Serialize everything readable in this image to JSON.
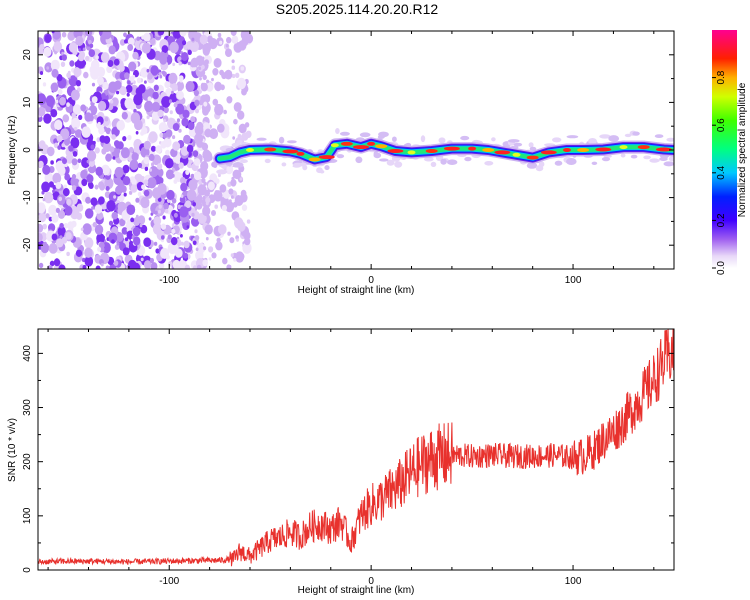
{
  "chart_data": [
    {
      "type": "heatmap",
      "title": "S205.2025.114.20.20.R12",
      "xlabel": "Height of straight line (km)",
      "ylabel": "Frequency (Hz)",
      "xlim": [
        -165,
        150
      ],
      "ylim": [
        -25,
        25
      ],
      "x_ticks": [
        -100,
        0,
        100
      ],
      "y_ticks": [
        -20,
        -10,
        0,
        10,
        20
      ],
      "x_tick_labels": [
        "-100",
        "0",
        "100"
      ],
      "y_tick_labels": [
        "-20",
        "-10",
        "0",
        "10",
        "20"
      ],
      "noise_region_x": [
        -165,
        -60
      ],
      "ridge": [
        {
          "x": -75,
          "y": -1.8
        },
        {
          "x": -70,
          "y": -1.5
        },
        {
          "x": -65,
          "y": -0.5
        },
        {
          "x": -60,
          "y": 0.0
        },
        {
          "x": -50,
          "y": 0.1
        },
        {
          "x": -40,
          "y": -0.3
        },
        {
          "x": -35,
          "y": -0.8
        },
        {
          "x": -28,
          "y": -2.0
        },
        {
          "x": -22,
          "y": -1.5
        },
        {
          "x": -18,
          "y": 1.0
        },
        {
          "x": -12,
          "y": 1.3
        },
        {
          "x": -5,
          "y": 0.6
        },
        {
          "x": 0,
          "y": 1.3
        },
        {
          "x": 5,
          "y": 0.8
        },
        {
          "x": 12,
          "y": -0.2
        },
        {
          "x": 20,
          "y": -0.5
        },
        {
          "x": 30,
          "y": -0.2
        },
        {
          "x": 40,
          "y": 0.3
        },
        {
          "x": 50,
          "y": 0.3
        },
        {
          "x": 58,
          "y": 0.0
        },
        {
          "x": 65,
          "y": -0.5
        },
        {
          "x": 72,
          "y": -1.0
        },
        {
          "x": 80,
          "y": -1.6
        },
        {
          "x": 88,
          "y": -0.5
        },
        {
          "x": 97,
          "y": 0.0
        },
        {
          "x": 105,
          "y": 0.0
        },
        {
          "x": 115,
          "y": 0.1
        },
        {
          "x": 125,
          "y": 0.6
        },
        {
          "x": 135,
          "y": 0.6
        },
        {
          "x": 145,
          "y": 0.1
        },
        {
          "x": 150,
          "y": 0.0
        }
      ],
      "colorbar": {
        "label": "Normalized spectral amplitude",
        "range": [
          0,
          1
        ],
        "ticks": [
          0.0,
          0.2,
          0.4,
          0.6,
          0.8
        ],
        "tick_labels": [
          "0.0",
          "0.2",
          "0.4",
          "0.6",
          "0.8"
        ],
        "colormap": "rainbow (white-violet-blue-cyan-green-yellow-red-magenta)"
      },
      "grid": false,
      "legend": "none"
    },
    {
      "type": "line",
      "title": "",
      "xlabel": "Height of straight line (km)",
      "ylabel": "SNR (10 * v/v)",
      "xlim": [
        -165,
        150
      ],
      "ylim": [
        0,
        445
      ],
      "x_ticks": [
        -100,
        0,
        100
      ],
      "y_ticks": [
        0,
        100,
        200,
        300,
        400
      ],
      "x_tick_labels": [
        "-100",
        "0",
        "100"
      ],
      "y_tick_labels": [
        "0",
        "100",
        "200",
        "300",
        "400"
      ],
      "line_color": "#e8312d",
      "series": [
        {
          "x": [
            -165,
            -150,
            -135,
            -120,
            -105,
            -90,
            -75,
            -68,
            -65,
            -60,
            -55,
            -50,
            -45,
            -40,
            -35,
            -30,
            -25,
            -20,
            -15,
            -10,
            -5,
            0,
            5,
            10,
            15,
            20,
            25,
            30,
            35,
            40,
            50,
            60,
            70,
            80,
            90,
            100,
            105,
            110,
            115,
            120,
            125,
            130,
            135,
            140,
            145,
            150
          ],
          "values": [
            15,
            16,
            16,
            15,
            16,
            17,
            18,
            20,
            35,
            25,
            40,
            55,
            60,
            70,
            62,
            80,
            85,
            75,
            90,
            50,
            100,
            120,
            130,
            145,
            160,
            180,
            195,
            205,
            210,
            212,
            210,
            212,
            210,
            210,
            212,
            208,
            210,
            220,
            240,
            255,
            275,
            300,
            325,
            350,
            385,
            405
          ]
        }
      ],
      "grid": false,
      "legend": "none"
    }
  ]
}
